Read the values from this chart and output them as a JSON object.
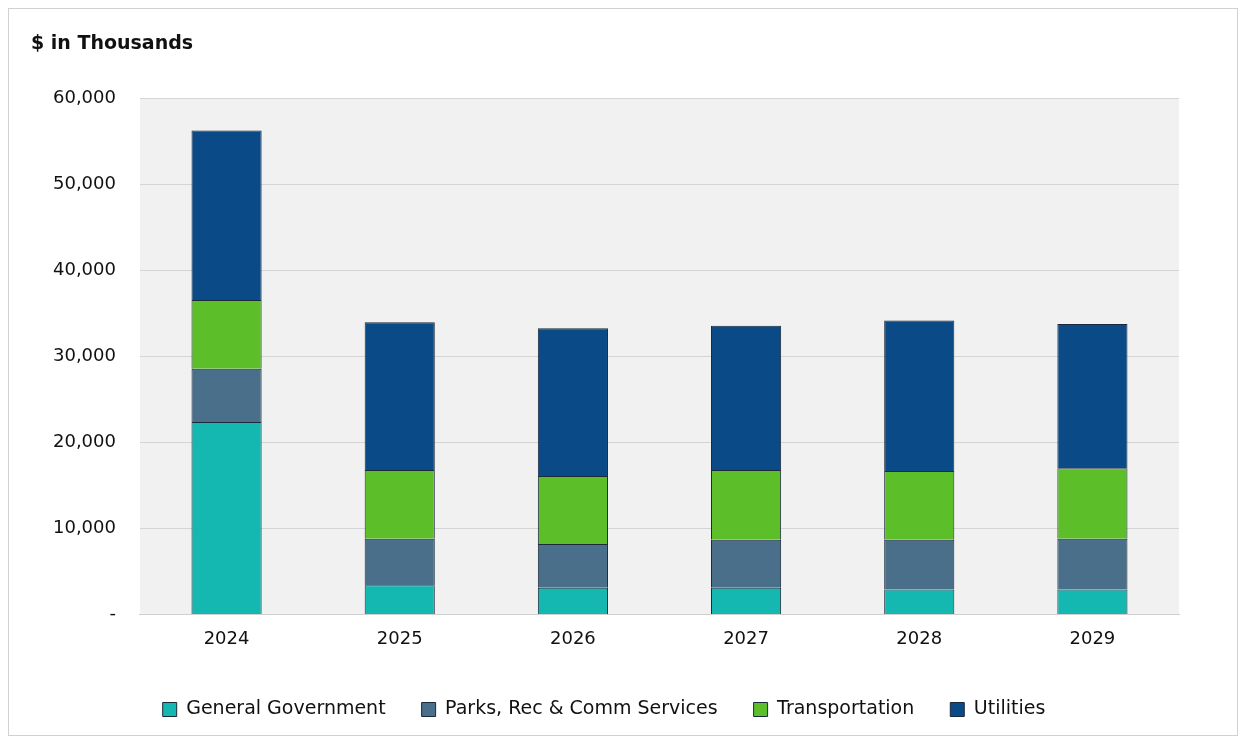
{
  "chart_data": {
    "type": "bar",
    "ylabel": "$ in Thousands",
    "categories": [
      "2024",
      "2025",
      "2026",
      "2027",
      "2028",
      "2029"
    ],
    "stacked": true,
    "series": [
      {
        "name": "General Government",
        "color": "#14b8b0",
        "values": [
          22400,
          3400,
          3100,
          3100,
          2900,
          2900
        ]
      },
      {
        "name": "Parks, Rec & Comm Services",
        "color": "#4a6f8a",
        "values": [
          6200,
          5400,
          5100,
          5600,
          5800,
          5900
        ]
      },
      {
        "name": "Transportation",
        "color": "#5cbf2a",
        "values": [
          8000,
          8000,
          7900,
          8100,
          8000,
          8200
        ]
      },
      {
        "name": "Utilities",
        "color": "#0a4a87",
        "values": [
          19700,
          17200,
          17200,
          16800,
          17500,
          16800
        ]
      }
    ],
    "ylim": [
      0,
      60000
    ],
    "yticks": [
      {
        "value": 0,
        "label": "-"
      },
      {
        "value": 10000,
        "label": "10,000"
      },
      {
        "value": 20000,
        "label": "20,000"
      },
      {
        "value": 30000,
        "label": "30,000"
      },
      {
        "value": 40000,
        "label": "40,000"
      },
      {
        "value": 50000,
        "label": "50,000"
      },
      {
        "value": 60000,
        "label": "60,000"
      }
    ],
    "grid": "y",
    "legend": "bottom"
  }
}
